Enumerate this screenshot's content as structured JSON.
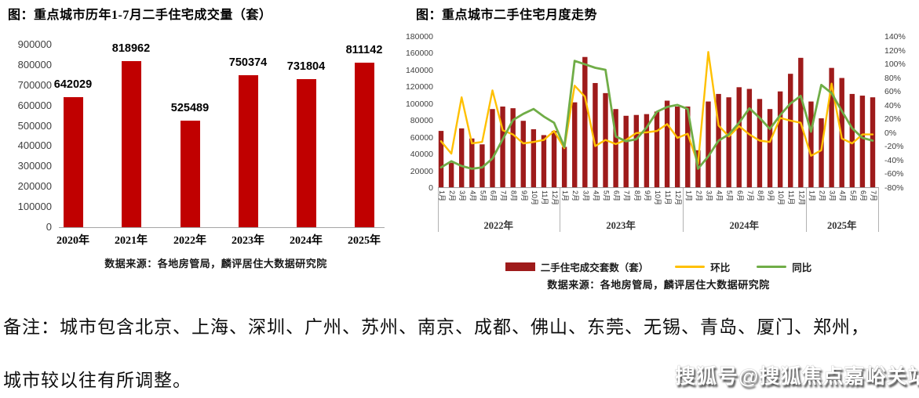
{
  "chart_data": [
    {
      "type": "bar",
      "title": "图：重点城市历年1-7月二手住宅成交量（套）",
      "source": "数据来源：各地房管局，麟评居住大数据研究院",
      "categories": [
        "2020年",
        "2021年",
        "2022年",
        "2023年",
        "2024年",
        "2025年"
      ],
      "values": [
        642029,
        818962,
        525489,
        750374,
        731804,
        811142
      ],
      "value_labels": [
        "642029",
        "818962",
        "525489",
        "750374",
        "731804",
        "811142"
      ],
      "xlabel": "",
      "ylabel": "",
      "ylim": [
        0,
        900000
      ],
      "y_ticks": [
        "900000",
        "800000",
        "700000",
        "600000",
        "500000",
        "400000",
        "300000",
        "200000",
        "100000",
        "0"
      ],
      "grid": false,
      "legend_position": "none",
      "bar_color": "#c00000"
    },
    {
      "type": "bar+line",
      "title": "图：重点城市二手住宅月度走势",
      "source": "数据来源：各地房管局，麟评居住大数据研究院",
      "x_groups": [
        {
          "year": "2022年",
          "months": [
            "1月",
            "2月",
            "3月",
            "4月",
            "5月",
            "6月",
            "7月",
            "8月",
            "9月",
            "10月",
            "11月",
            "12月"
          ]
        },
        {
          "year": "2023年",
          "months": [
            "1月",
            "2月",
            "3月",
            "4月",
            "5月",
            "6月",
            "7月",
            "8月",
            "9月",
            "10月",
            "11月",
            "12月"
          ]
        },
        {
          "year": "2024年",
          "months": [
            "1月",
            "2月",
            "3月",
            "4月",
            "5月",
            "6月",
            "7月",
            "8月",
            "9月",
            "10月",
            "11月",
            "12月"
          ]
        },
        {
          "year": "2025年",
          "months": [
            "1月",
            "2月",
            "3月",
            "4月",
            "5月",
            "6月",
            "7月"
          ]
        }
      ],
      "series": [
        {
          "name": "二手住宅成交套数（套）",
          "type": "bar",
          "axis": "left",
          "color": "#9e1b1b",
          "values": [
            68000,
            30000,
            71000,
            59000,
            52000,
            94000,
            97000,
            95000,
            80000,
            70000,
            63000,
            68000,
            49000,
            102000,
            156000,
            125000,
            113000,
            94000,
            86000,
            87000,
            88000,
            91000,
            104000,
            97000,
            97000,
            45000,
            103000,
            112000,
            108000,
            120000,
            118000,
            106000,
            94000,
            115000,
            136000,
            155000,
            103000,
            83000,
            143000,
            131000,
            112000,
            110000,
            108000
          ]
        },
        {
          "name": "环比",
          "type": "line",
          "axis": "right",
          "color": "#ffc000",
          "values": [
            -12,
            -30,
            52,
            -15,
            -13,
            62,
            4,
            -2,
            -15,
            -13,
            -10,
            3,
            -22,
            69,
            53,
            -19,
            -10,
            -16,
            -10,
            0,
            1,
            3,
            13,
            -7,
            -1,
            -45,
            118,
            11,
            -5,
            10,
            -2,
            -11,
            -13,
            22,
            18,
            15,
            -33,
            -25,
            72,
            -8,
            -15,
            -2,
            -2
          ]
        },
        {
          "name": "同比",
          "type": "line",
          "axis": "right",
          "color": "#70ad47",
          "values": [
            -50,
            -41,
            -48,
            -52,
            -50,
            -37,
            -9,
            19,
            28,
            35,
            24,
            15,
            -20,
            105,
            100,
            95,
            92,
            -5,
            -12,
            -9,
            8,
            31,
            38,
            41,
            35,
            -52,
            -34,
            -11,
            -2,
            15,
            36,
            22,
            6,
            26,
            43,
            54,
            2,
            70,
            58,
            32,
            7,
            -7,
            -11
          ]
        }
      ],
      "left_axis": {
        "ylim": [
          0,
          180000
        ],
        "ticks": [
          "180000",
          "160000",
          "140000",
          "120000",
          "100000",
          "80000",
          "60000",
          "40000",
          "20000",
          "0"
        ]
      },
      "right_axis": {
        "ylim": [
          -80,
          140
        ],
        "ticks": [
          "140%",
          "120%",
          "100%",
          "80%",
          "60%",
          "40%",
          "20%",
          "0%",
          "-20%",
          "-40%",
          "-60%",
          "-80%"
        ]
      },
      "grid": false,
      "legend_position": "bottom"
    }
  ],
  "note": {
    "line1": "备注：城市包含北京、上海、深圳、广州、苏州、南京、成都、佛山、东莞、无锡、青岛、厦门、郑州，",
    "line2": "城市较以往有所调整。"
  },
  "watermark": "搜狐号@搜狐焦点嘉峪关站"
}
